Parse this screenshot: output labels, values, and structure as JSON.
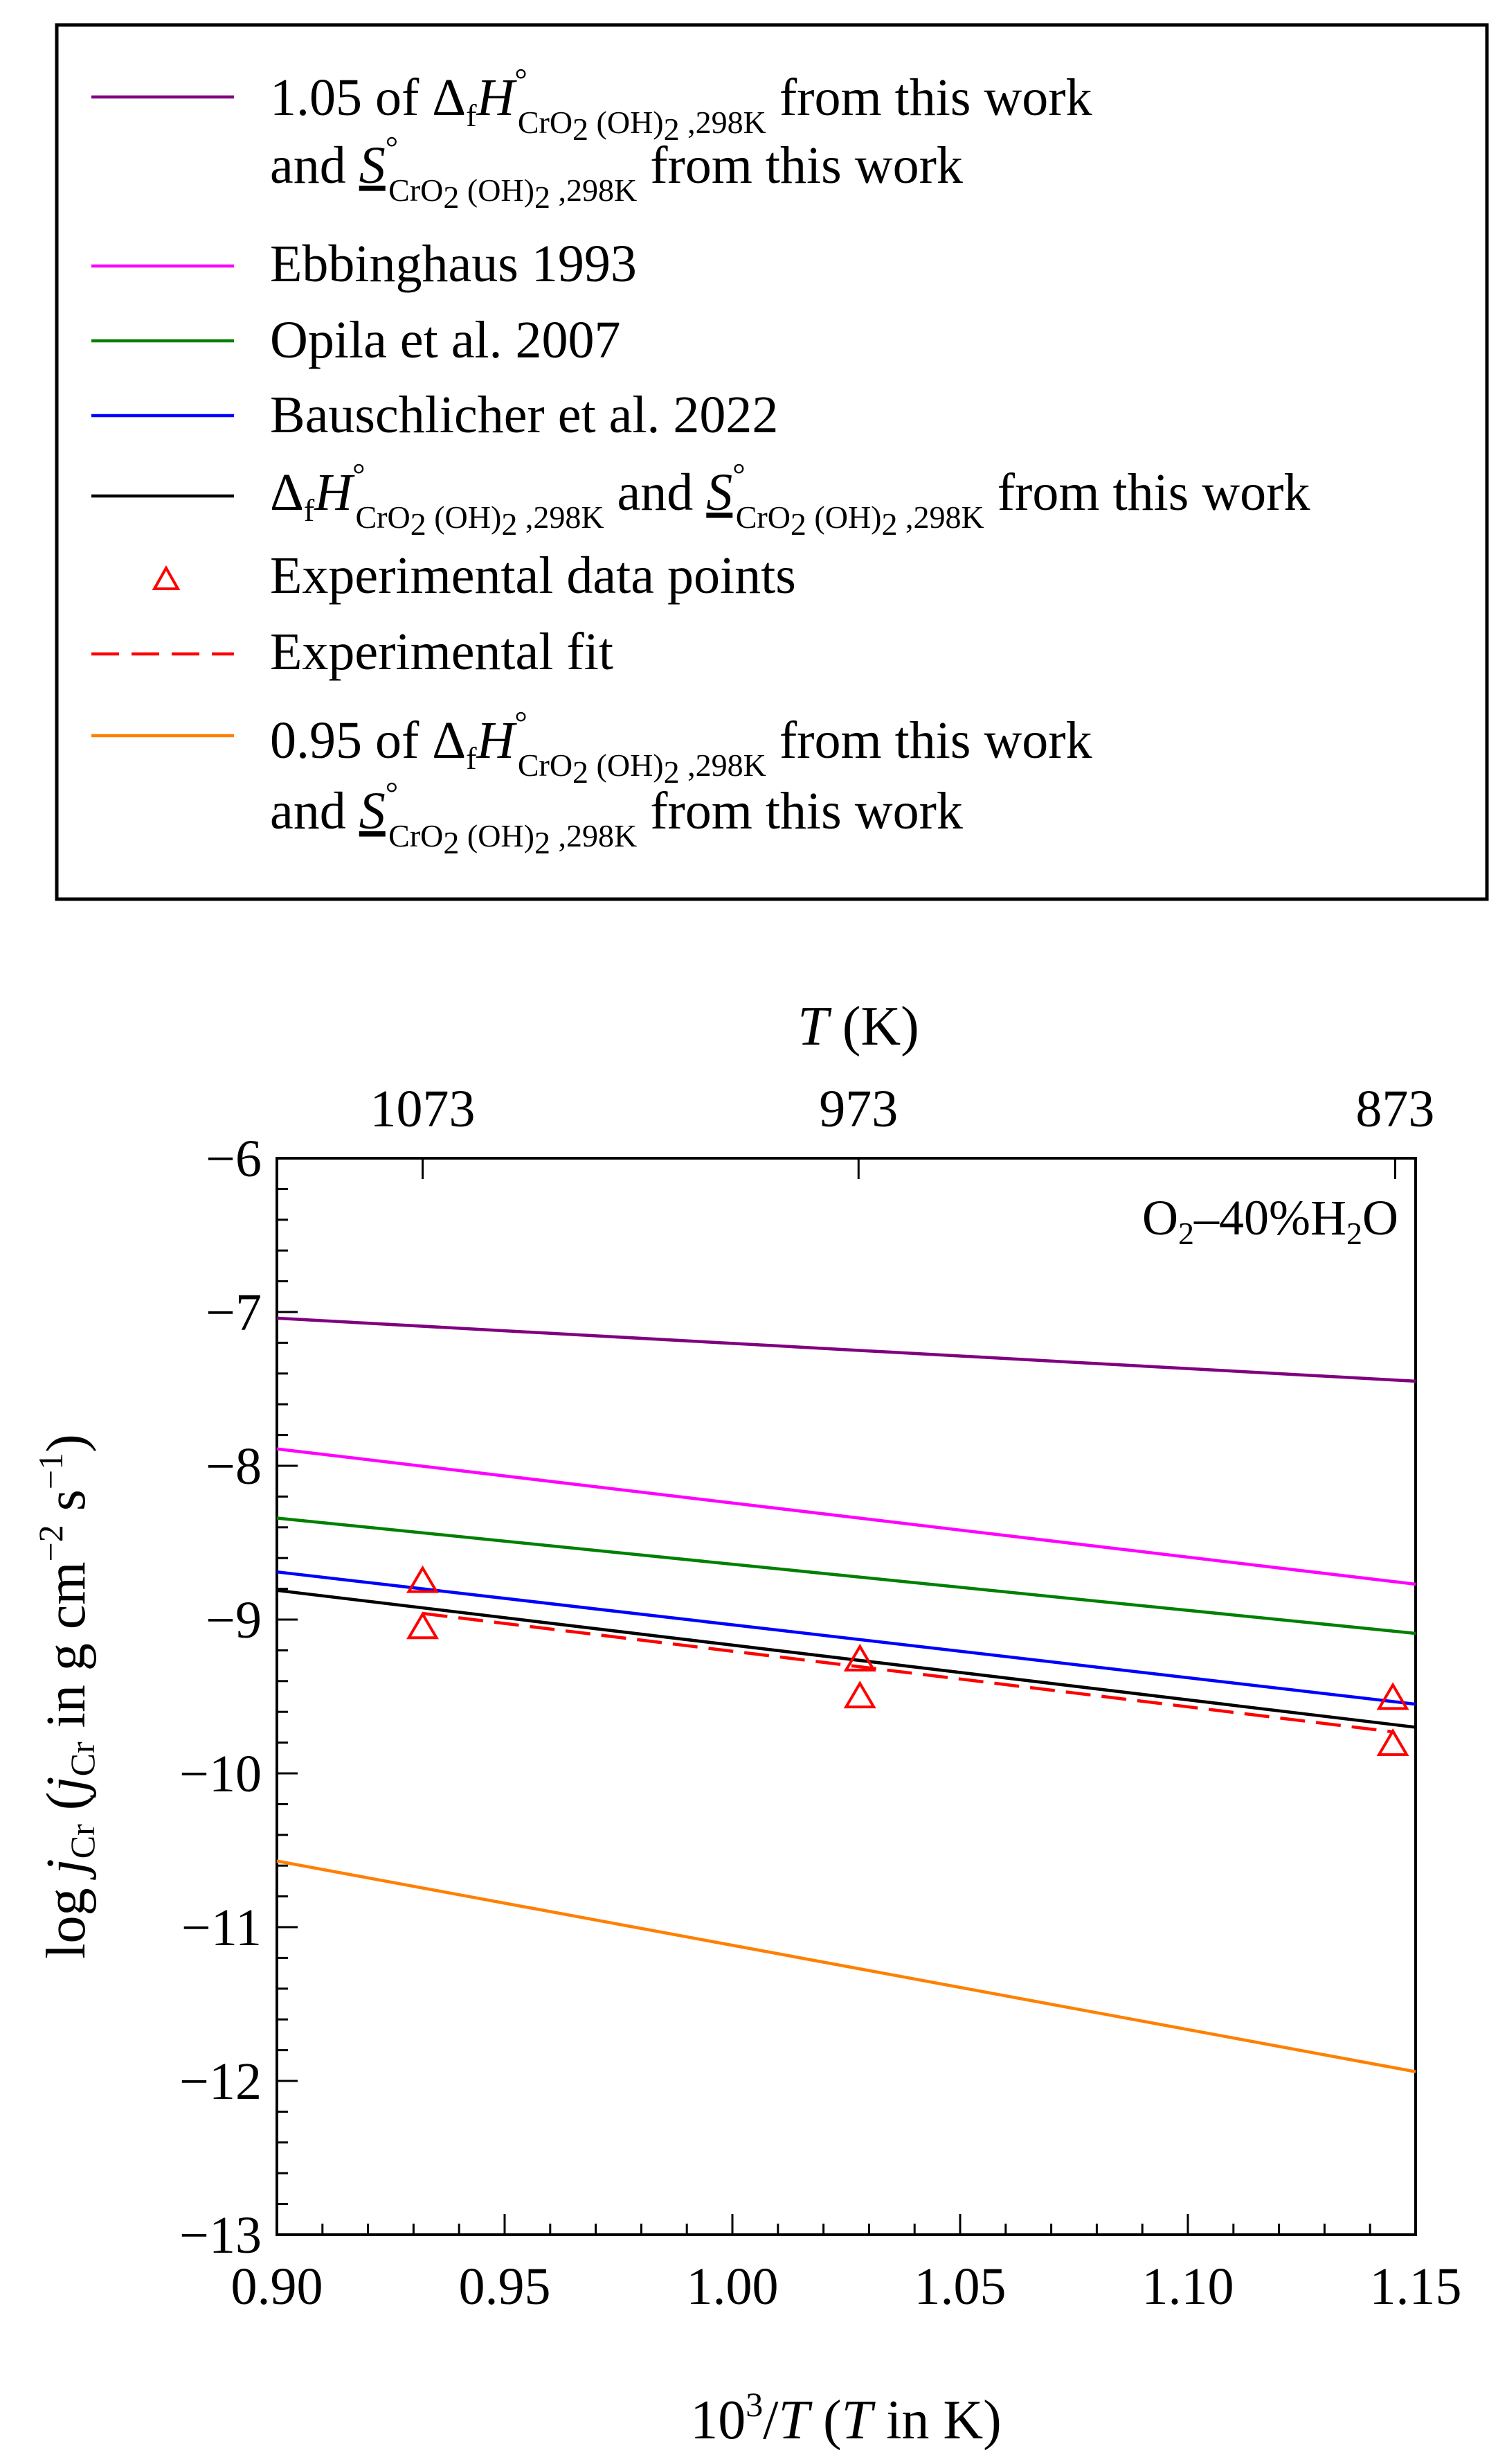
{
  "chart_data": {
    "type": "line",
    "title": "",
    "xlabel": {
      "prefix": "10",
      "sup": "3",
      "mid": "/",
      "var": "T",
      "open": " (",
      "var2": "T",
      "rest": " in K)"
    },
    "ylabel": {
      "main": "log ",
      "var": "j",
      "sub": "Cr",
      "open": " (",
      "var2": "j",
      "sub2": "Cr",
      "unit": " in g cm",
      "exp1": "−2",
      "s": " s",
      "exp2": "−1",
      "close": ")"
    },
    "top_axis": {
      "var": "T",
      "unit": " (K)",
      "ticks": [
        {
          "label": "1073",
          "x": 0.932
        },
        {
          "label": "973",
          "x": 1.0277
        },
        {
          "label": "873",
          "x": 1.1455
        }
      ]
    },
    "xlim": [
      0.9,
      1.15
    ],
    "ylim": [
      -13,
      -6
    ],
    "xticks": [
      0.9,
      0.95,
      1.0,
      1.05,
      1.1,
      1.15
    ],
    "xtick_labels": [
      "0.90",
      "0.95",
      "1.00",
      "1.05",
      "1.10",
      "1.15"
    ],
    "yticks": [
      -13,
      -12,
      -11,
      -10,
      -9,
      -8,
      -7,
      -6
    ],
    "ytick_labels": [
      "−13",
      "−12",
      "−11",
      "−10",
      "−9",
      "−8",
      "−7",
      "−6"
    ],
    "annotation": {
      "a": "O",
      "sub": "2",
      "b": "–40%H",
      "sub2": "2",
      "c": "O"
    },
    "series": [
      {
        "name": "1.05 of ΔfH° CrO2(OH)2,298K from this work and S° CrO2(OH)2,298K from this work",
        "color": "#800080",
        "style": "solid",
        "x": [
          0.9,
          1.15
        ],
        "y": [
          -7.04,
          -7.45
        ]
      },
      {
        "name": "Ebbinghaus 1993",
        "color": "#ff00ff",
        "style": "solid",
        "x": [
          0.9,
          1.15
        ],
        "y": [
          -7.89,
          -8.77
        ]
      },
      {
        "name": "Opila et al. 2007",
        "color": "#008000",
        "style": "solid",
        "x": [
          0.9,
          1.15
        ],
        "y": [
          -8.34,
          -9.09
        ]
      },
      {
        "name": "Bauschlicher et al. 2022",
        "color": "#0000ff",
        "style": "solid",
        "x": [
          0.9,
          1.15
        ],
        "y": [
          -8.69,
          -9.55
        ]
      },
      {
        "name": "ΔfH° CrO2(OH)2,298K and S° CrO2(OH)2,298K from this work",
        "color": "#000000",
        "style": "solid",
        "x": [
          0.9,
          1.15
        ],
        "y": [
          -8.81,
          -9.7
        ]
      },
      {
        "name": "Experimental fit",
        "color": "#ff0000",
        "style": "dashed",
        "x": [
          0.932,
          1.145
        ],
        "y": [
          -8.96,
          -9.73
        ]
      },
      {
        "name": "0.95 of ΔfH° CrO2(OH)2,298K from this work and S° CrO2(OH)2,298K from this work",
        "color": "#ff8000",
        "style": "solid",
        "x": [
          0.9,
          1.15
        ],
        "y": [
          -10.57,
          -11.94
        ]
      }
    ],
    "points": {
      "name": "Experimental data points",
      "color": "#ff0000",
      "x": [
        0.932,
        0.932,
        1.028,
        1.028,
        1.145,
        1.145
      ],
      "y": [
        -8.76,
        -9.06,
        -9.27,
        -9.51,
        -9.52,
        -9.82
      ]
    }
  },
  "legend": {
    "position": "top",
    "entries": [
      {
        "key": "purple",
        "color": "#800080",
        "style": "solid",
        "line1": {
          "pre": "1.05 of  Δ",
          "f": "f",
          "H": "H",
          "deg": "°",
          "sub": "CrO",
          "sub2": "2",
          "sub3": " (OH)",
          "sub4": "2",
          "sub5": " ,298K",
          "post": "  from this work"
        },
        "line2": {
          "pre": "and ",
          "S": "S",
          "deg": "°",
          "sub": "CrO",
          "sub2": "2",
          "sub3": " (OH)",
          "sub4": "2",
          "sub5": " ,298K",
          "post": " from this work"
        }
      },
      {
        "key": "magenta",
        "color": "#ff00ff",
        "style": "solid",
        "label": "Ebbinghaus 1993"
      },
      {
        "key": "green",
        "color": "#008000",
        "style": "solid",
        "label": "Opila et al. 2007"
      },
      {
        "key": "blue",
        "color": "#0000ff",
        "style": "solid",
        "label": "Bauschlicher et al. 2022"
      },
      {
        "key": "black",
        "color": "#000000",
        "style": "solid",
        "line1": {
          "pre": "Δ",
          "f": "f",
          "H": "H",
          "deg": "°",
          "sub": "CrO",
          "sub2": "2",
          "sub3": " (OH)",
          "sub4": "2",
          "sub5": " ,298K",
          "mid": " and  ",
          "S": "S",
          "deg2": "°",
          "subb": "CrO",
          "subb2": "2",
          "subb3": " (OH)",
          "subb4": "2",
          "subb5": " ,298K",
          "post": " from this work"
        }
      },
      {
        "key": "points",
        "color": "#ff0000",
        "style": "triangle",
        "label": "Experimental data points"
      },
      {
        "key": "fit",
        "color": "#ff0000",
        "style": "dashed",
        "label": "Experimental fit"
      },
      {
        "key": "orange",
        "color": "#ff8000",
        "style": "solid",
        "line1": {
          "pre": "0.95 of  Δ",
          "f": "f",
          "H": "H",
          "deg": "°",
          "sub": "CrO",
          "sub2": "2",
          "sub3": " (OH)",
          "sub4": "2",
          "sub5": " ,298K",
          "post": "  from this work"
        },
        "line2": {
          "pre": "and  ",
          "S": "S",
          "deg": "°",
          "sub": "CrO",
          "sub2": "2",
          "sub3": " (OH)",
          "sub4": "2",
          "sub5": " ,298K",
          "post": "  from this work"
        }
      }
    ]
  }
}
